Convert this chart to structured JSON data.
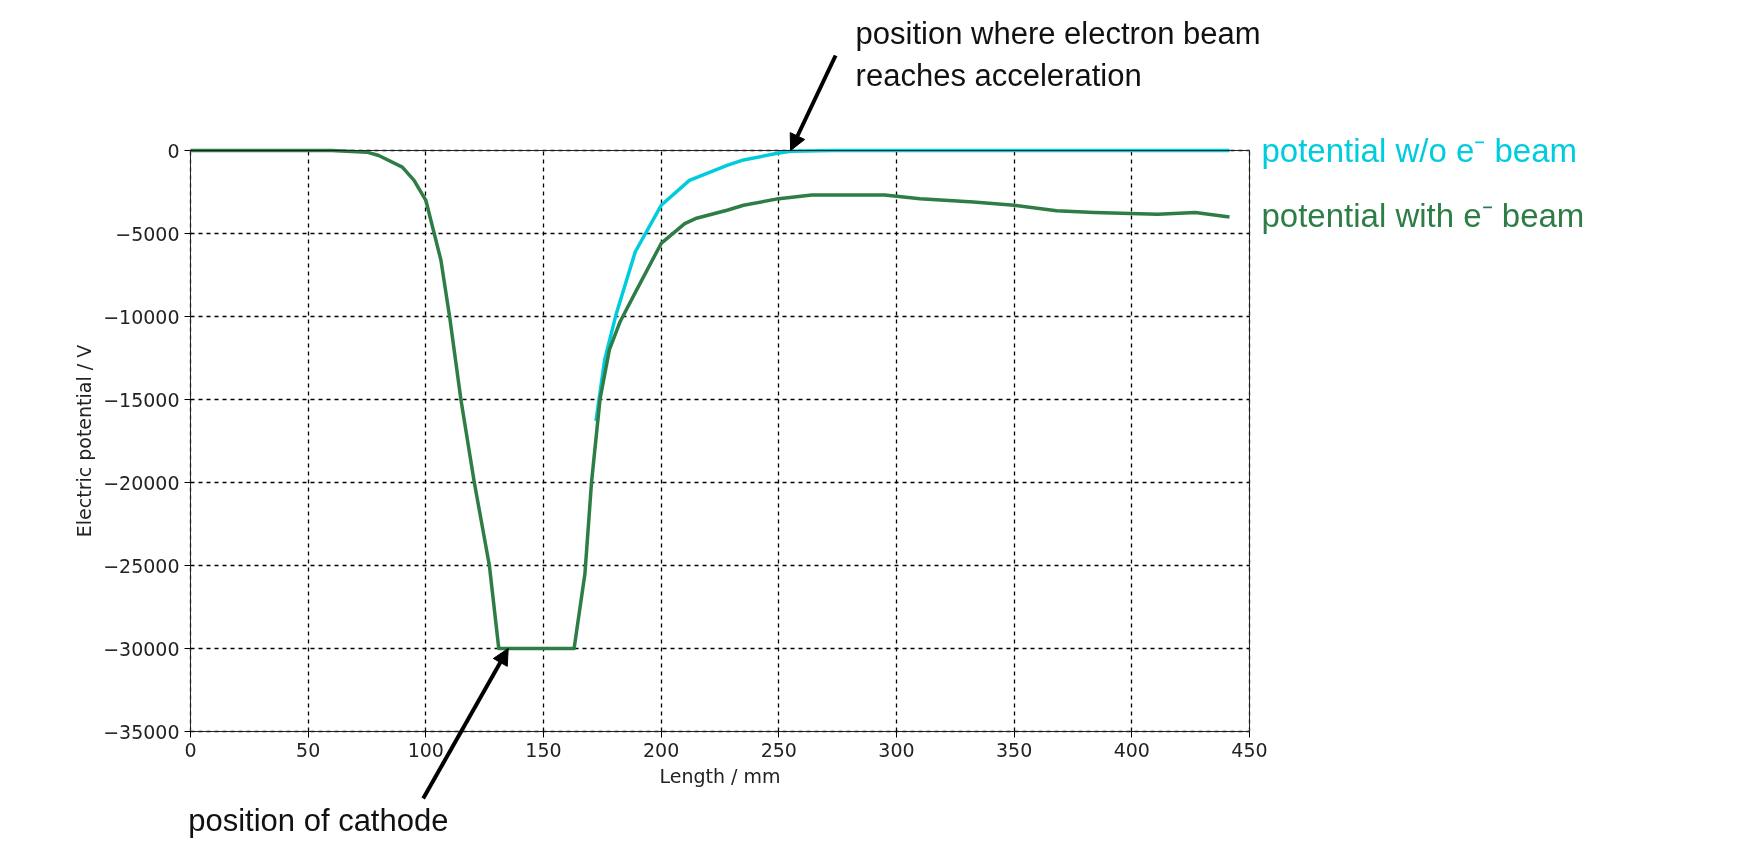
{
  "chart_data": {
    "type": "line",
    "xlabel": "Length / mm",
    "ylabel": "Electric potential / V",
    "xlim": [
      0,
      450
    ],
    "ylim": [
      -35000,
      0
    ],
    "xticks": [
      0,
      50,
      100,
      150,
      200,
      250,
      300,
      350,
      400,
      450
    ],
    "yticks": [
      -35000,
      -30000,
      -25000,
      -20000,
      -15000,
      -10000,
      -5000,
      0
    ],
    "grid": true,
    "line_style": "solid",
    "marker": "none",
    "annotations": [
      {
        "text": "position where electron beam reaches acceleration",
        "x": 255,
        "y": 0
      },
      {
        "text": "position of cathode",
        "x": 135,
        "y": -30000
      }
    ],
    "series": [
      {
        "name": "potential w/o e⁻ beam",
        "color": "#00ccdd",
        "x": [
          172.3,
          176,
          180.8,
          189,
          200,
          212,
          228,
          235,
          250,
          255,
          273,
          441.5
        ],
        "values": [
          -16300,
          -12600,
          -9900,
          -6100,
          -3300,
          -1800,
          -900,
          -570,
          -150,
          -40,
          0,
          0
        ]
      },
      {
        "name": "potential with e⁻ beam",
        "color": "#2e7d46",
        "x": [
          0,
          60,
          75,
          80,
          90,
          95,
          100,
          106.4,
          110.2,
          114.9,
          120.6,
          127,
          131,
          163,
          167.6,
          170.4,
          174,
          178,
          182.6,
          189.2,
          200,
          210,
          214.6,
          228,
          235,
          250,
          264,
          283.6,
          295,
          310,
          332.7,
          350,
          368,
          384,
          411,
          427,
          441.5
        ],
        "values": [
          0,
          0,
          -100,
          -300,
          -1000,
          -1800,
          -3000,
          -6600,
          -10100,
          -15000,
          -20000,
          -25000,
          -30000,
          -30000,
          -25500,
          -20000,
          -15000,
          -12000,
          -10300,
          -8500,
          -5600,
          -4400,
          -4100,
          -3600,
          -3300,
          -2900,
          -2680,
          -2680,
          -2680,
          -2900,
          -3100,
          -3300,
          -3630,
          -3730,
          -3840,
          -3730,
          -4000
        ]
      }
    ]
  }
}
